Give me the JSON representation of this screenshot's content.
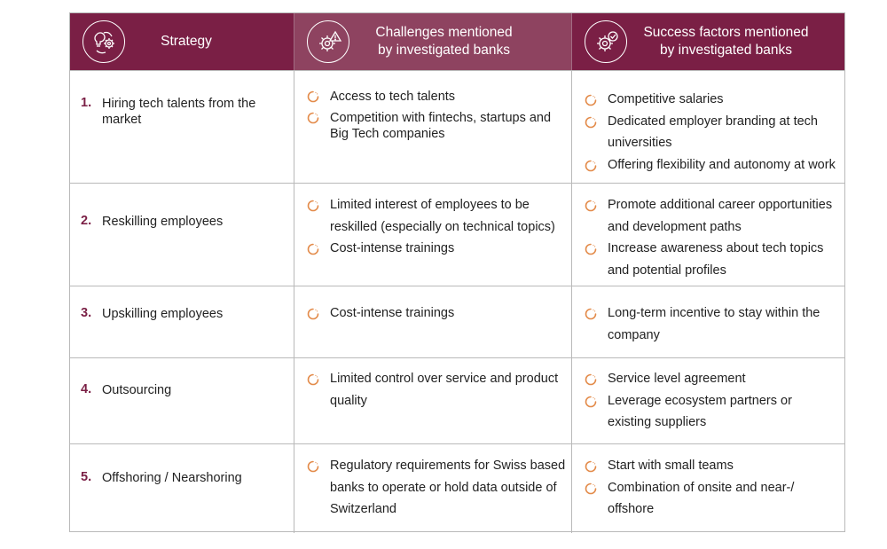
{
  "header": {
    "strategy": "Strategy",
    "challenges_line1": "Challenges mentioned",
    "challenges_line2": "by investigated banks",
    "success_line1": "Success factors mentioned",
    "success_line2": "by investigated banks"
  },
  "icons": {
    "strategy": "lightbulb-gears-icon",
    "challenges": "gear-warning-icon",
    "success": "gear-checkmark-icon",
    "bullet": "spinner-arc-icon"
  },
  "colors": {
    "header_bg": "#7a1f45",
    "header_highlight": "#8e4360",
    "accent": "#7a1f45",
    "bullet": "#e38b4a"
  },
  "rows": [
    {
      "num": "1.",
      "strategy": "Hiring tech talents from the market",
      "challenges": [
        "Access to tech talents",
        "Competition with fintechs, startups and Big Tech companies"
      ],
      "success": [
        "Competitive salaries",
        "Dedicated employer branding at tech universities",
        "Offering flexibility and autonomy at work"
      ]
    },
    {
      "num": "2.",
      "strategy": "Reskilling employees",
      "challenges": [
        "Limited interest of employees to be reskilled (especially on technical topics)",
        "Cost-intense trainings"
      ],
      "success": [
        "Promote additional career opportunities and development paths",
        "Increase awareness about tech topics and potential profiles"
      ]
    },
    {
      "num": "3.",
      "strategy": "Upskilling employees",
      "challenges": [
        "Cost-intense trainings"
      ],
      "success": [
        "Long-term incentive to stay within the company"
      ]
    },
    {
      "num": "4.",
      "strategy": "Outsourcing",
      "challenges": [
        "Limited control over service and product quality"
      ],
      "success": [
        "Service level agreement",
        "Leverage ecosystem partners or existing suppliers"
      ]
    },
    {
      "num": "5.",
      "strategy": "Offshoring / Nearshoring",
      "challenges": [
        "Regulatory requirements for Swiss based banks to operate or hold data outside of Switzerland"
      ],
      "success": [
        "Start with small teams",
        "Combination of onsite and near-/ offshore"
      ]
    }
  ]
}
